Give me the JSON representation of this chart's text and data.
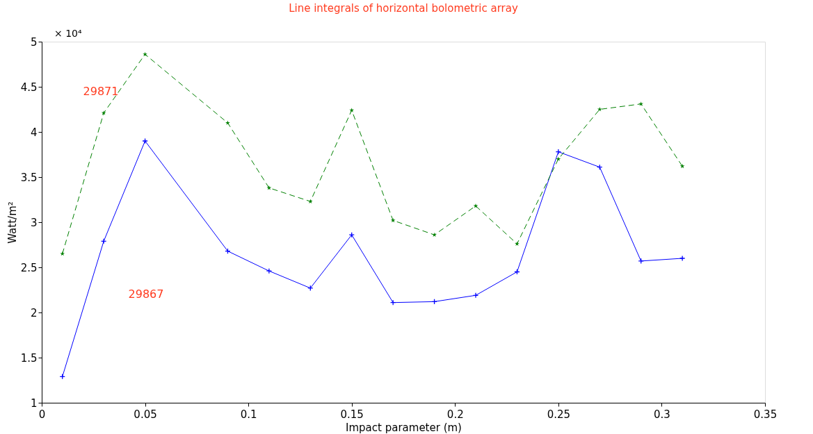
{
  "chart_data": {
    "type": "line",
    "title": "Line integrals of horizontal bolometric array",
    "xlabel": "Impact parameter (m)",
    "ylabel": "Watt/m²",
    "x": [
      0.01,
      0.03,
      0.05,
      0.09,
      0.11,
      0.13,
      0.15,
      0.17,
      0.19,
      0.21,
      0.23,
      0.25,
      0.27,
      0.29,
      0.31
    ],
    "series": [
      {
        "color": "#0000ff",
        "marker": "cross",
        "line_style": "solid",
        "values": [
          1.29,
          2.79,
          3.9,
          2.68,
          2.46,
          2.27,
          2.86,
          2.11,
          2.12,
          2.19,
          2.45,
          3.78,
          3.61,
          2.57,
          2.6
        ]
      },
      {
        "color": "#008000",
        "marker": "star",
        "line_style": "dashed",
        "values": [
          2.65,
          4.21,
          4.86,
          4.1,
          3.38,
          3.23,
          4.24,
          3.02,
          2.86,
          3.18,
          2.76,
          3.7,
          4.25,
          4.31,
          3.62
        ]
      }
    ],
    "xlim": [
      0,
      0.35
    ],
    "xticks": [
      0,
      0.05,
      0.1,
      0.15,
      0.2,
      0.25,
      0.3,
      0.35
    ],
    "ylim": [
      1,
      5
    ],
    "yticks": [
      1,
      1.5,
      2,
      2.5,
      3,
      3.5,
      4,
      4.5,
      5
    ],
    "annotations": [
      "× 10⁴",
      "29871",
      "29867"
    ],
    "grid": false
  }
}
